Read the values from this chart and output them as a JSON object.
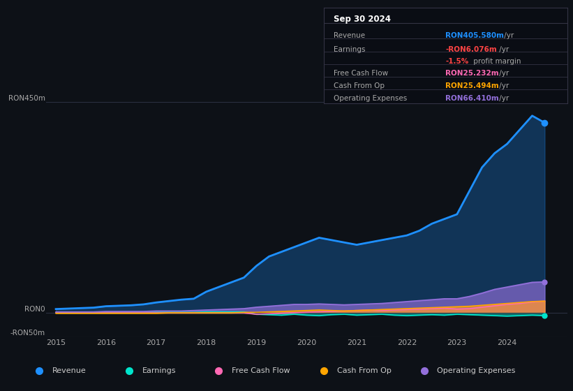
{
  "background_color": "#0d1117",
  "plot_bg_color": "#0d1117",
  "grid_color": "#2a3040",
  "info_box_bg": "#0a0d14",
  "info_box_border": "#333344",
  "ylim": [
    -50,
    450
  ],
  "xlim": [
    2014.8,
    2025.2
  ],
  "years": [
    2015,
    2015.25,
    2015.5,
    2015.75,
    2016,
    2016.25,
    2016.5,
    2016.75,
    2017,
    2017.25,
    2017.5,
    2017.75,
    2018,
    2018.25,
    2018.5,
    2018.75,
    2019,
    2019.25,
    2019.5,
    2019.75,
    2020,
    2020.25,
    2020.5,
    2020.75,
    2021,
    2021.25,
    2021.5,
    2021.75,
    2022,
    2022.25,
    2022.5,
    2022.75,
    2023,
    2023.25,
    2023.5,
    2023.75,
    2024,
    2024.25,
    2024.5,
    2024.75
  ],
  "revenue": [
    8,
    9,
    10,
    11,
    14,
    15,
    16,
    18,
    22,
    25,
    28,
    30,
    45,
    55,
    65,
    75,
    100,
    120,
    130,
    140,
    150,
    160,
    155,
    150,
    145,
    150,
    155,
    160,
    165,
    175,
    190,
    200,
    210,
    260,
    310,
    340,
    360,
    390,
    420,
    405
  ],
  "earnings": [
    0,
    0,
    0,
    0,
    0,
    0,
    0,
    0,
    1,
    1,
    1,
    1,
    2,
    2,
    2,
    2,
    -3,
    -4,
    -5,
    -3,
    -5,
    -6,
    -4,
    -3,
    -5,
    -4,
    -3,
    -5,
    -6,
    -5,
    -4,
    -5,
    -3,
    -4,
    -5,
    -6,
    -7,
    -6,
    -5,
    -6
  ],
  "free_cash_flow": [
    0,
    0,
    0,
    0,
    0,
    0,
    0,
    0,
    0,
    0,
    0,
    0,
    0,
    0,
    0,
    0,
    -3,
    -2,
    -1,
    0,
    1,
    2,
    3,
    4,
    5,
    6,
    5,
    6,
    7,
    8,
    9,
    10,
    8,
    9,
    12,
    15,
    18,
    20,
    23,
    25
  ],
  "cash_from_op": [
    -1,
    -1,
    -1,
    -1,
    -1,
    -1,
    -1,
    -1,
    -1,
    0,
    0,
    0,
    0,
    0,
    0,
    1,
    1,
    2,
    3,
    4,
    5,
    6,
    5,
    4,
    5,
    6,
    7,
    8,
    9,
    10,
    11,
    12,
    13,
    14,
    16,
    18,
    20,
    22,
    24,
    25
  ],
  "operating_expenses": [
    2,
    2,
    2,
    2,
    3,
    3,
    3,
    3,
    4,
    4,
    4,
    5,
    6,
    7,
    8,
    9,
    12,
    14,
    16,
    18,
    18,
    19,
    18,
    17,
    18,
    19,
    20,
    22,
    24,
    26,
    28,
    30,
    30,
    35,
    42,
    50,
    55,
    60,
    65,
    66
  ],
  "revenue_color": "#1e90ff",
  "earnings_color": "#00e5cc",
  "free_cash_flow_color": "#ff69b4",
  "cash_from_op_color": "#ffa500",
  "operating_expenses_color": "#9370db",
  "xtick_years": [
    2015,
    2016,
    2017,
    2018,
    2019,
    2020,
    2021,
    2022,
    2023,
    2024
  ],
  "info_title": "Sep 30 2024",
  "info_rows": [
    {
      "label": "Revenue",
      "value": "RON405.580m",
      "suffix": " /yr",
      "value_color": "#1e90ff"
    },
    {
      "label": "Earnings",
      "value": "-RON6.076m",
      "suffix": " /yr",
      "value_color": "#ff4444"
    },
    {
      "label": "",
      "value": "-1.5%",
      "suffix": " profit margin",
      "value_color": "#ff4444"
    },
    {
      "label": "Free Cash Flow",
      "value": "RON25.232m",
      "suffix": " /yr",
      "value_color": "#ff69b4"
    },
    {
      "label": "Cash From Op",
      "value": "RON25.494m",
      "suffix": " /yr",
      "value_color": "#ffa500"
    },
    {
      "label": "Operating Expenses",
      "value": "RON66.410m",
      "suffix": " /yr",
      "value_color": "#9370db"
    }
  ],
  "legend_items": [
    {
      "label": "Revenue",
      "color": "#1e90ff"
    },
    {
      "label": "Earnings",
      "color": "#00e5cc"
    },
    {
      "label": "Free Cash Flow",
      "color": "#ff69b4"
    },
    {
      "label": "Cash From Op",
      "color": "#ffa500"
    },
    {
      "label": "Operating Expenses",
      "color": "#9370db"
    }
  ]
}
